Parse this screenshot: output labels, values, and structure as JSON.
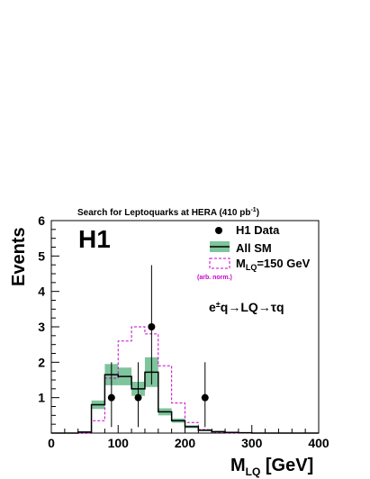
{
  "chart_data": {
    "type": "histogram",
    "title_main": "Search for Leptoquarks at HERA (410 pb",
    "title_sup": "-1",
    "title_end": ")",
    "ylabel": "Events",
    "xlabel_main": "M",
    "xlabel_sub": "LQ",
    "xlabel_unit": " [GeV]",
    "xlim": [
      0,
      400
    ],
    "ylim": [
      0,
      6
    ],
    "xticks": [
      0,
      100,
      200,
      300,
      400
    ],
    "yticks": [
      1,
      2,
      3,
      4,
      5,
      6
    ],
    "experiment_label": "H1",
    "process": {
      "pre": "e",
      "pm": "±",
      "post": "q",
      "arrow1": "→",
      "mid": "LQ",
      "arrow2": "→",
      "tau": "τ",
      "end": "q"
    },
    "legend": {
      "data": "H1 Data",
      "sm": "All SM",
      "lq_main": "M",
      "lq_sub": "LQ",
      "lq_end": "=150 GeV",
      "lq_note": "(arb. norm.)"
    },
    "bin_edges": [
      0,
      20,
      40,
      60,
      80,
      100,
      120,
      140,
      160,
      180,
      200,
      220,
      240,
      260,
      280,
      300,
      320,
      340,
      360,
      380,
      400
    ],
    "sm_values": [
      0,
      0,
      0.03,
      0.8,
      1.65,
      1.6,
      1.25,
      1.72,
      0.6,
      0.35,
      0.18,
      0.08,
      0.04,
      0.02,
      0.01,
      0,
      0,
      0,
      0,
      0
    ],
    "sm_err": [
      0,
      0,
      0.02,
      0.12,
      0.3,
      0.25,
      0.2,
      0.42,
      0.1,
      0.06,
      0.04,
      0.02,
      0.01,
      0.01,
      0,
      0,
      0,
      0,
      0,
      0
    ],
    "lq_values": [
      0,
      0,
      0,
      0.35,
      1.55,
      2.6,
      3.0,
      2.8,
      1.9,
      0.85,
      0.3,
      0.1,
      0.03,
      0,
      0,
      0,
      0,
      0,
      0,
      0
    ],
    "data_points": [
      {
        "x": 90,
        "y": 1,
        "err_low": 0.83,
        "err_high": 1.0
      },
      {
        "x": 130,
        "y": 1,
        "err_low": 0.83,
        "err_high": 1.0
      },
      {
        "x": 150,
        "y": 3,
        "err_low": 1.63,
        "err_high": 1.74
      },
      {
        "x": 230,
        "y": 1,
        "err_low": 0.83,
        "err_high": 1.0
      }
    ],
    "colors": {
      "sm_band": "#7ec49c",
      "sm_line": "#000000",
      "lq_line": "#cc00cc",
      "data": "#000000"
    }
  }
}
